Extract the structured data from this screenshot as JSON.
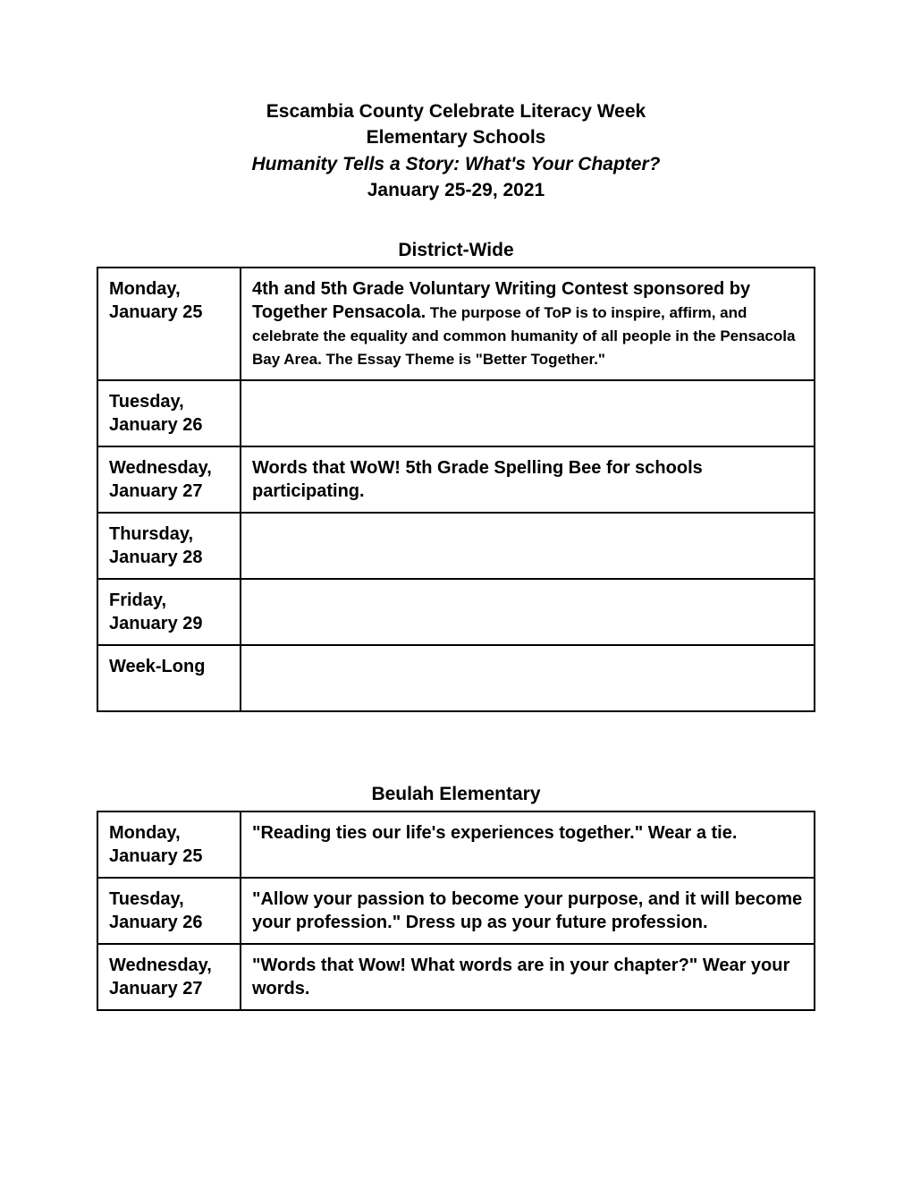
{
  "header": {
    "line1": "Escambia County Celebrate Literacy Week",
    "line2": "Elementary Schools",
    "line3": "Humanity Tells a Story:  What's Your Chapter?",
    "line4": "January 25-29, 2021"
  },
  "sections": [
    {
      "title": "District-Wide",
      "rows": [
        {
          "day": "Monday, January 25",
          "content_bold": "4th and 5th Grade Voluntary Writing Contest sponsored by Together Pensacola.",
          "content_small": "  The purpose of ToP is to inspire, affirm, and celebrate the equality and common humanity of all people in the Pensacola Bay Area. The Essay Theme is \"Better Together.\""
        },
        {
          "day": "Tuesday, January 26",
          "content_bold": "",
          "content_small": ""
        },
        {
          "day": "Wednesday, January 27",
          "content_bold": "Words that WoW! 5th Grade Spelling Bee for schools participating.",
          "content_small": ""
        },
        {
          "day": "Thursday, January 28",
          "content_bold": "",
          "content_small": ""
        },
        {
          "day": "Friday, January 29",
          "content_bold": "",
          "content_small": ""
        },
        {
          "day": "Week-Long",
          "content_bold": "",
          "content_small": ""
        }
      ]
    },
    {
      "title": "Beulah Elementary",
      "rows": [
        {
          "day": "Monday, January 25",
          "content_bold": "\"Reading ties our life's experiences together.\"  Wear a tie.",
          "content_small": ""
        },
        {
          "day": "Tuesday, January 26",
          "content_bold": "\"Allow your passion to become your purpose, and it will become your profession.\" Dress up as your future profession.",
          "content_small": ""
        },
        {
          "day": "Wednesday, January 27",
          "content_bold": "\"Words that Wow! What words are in your chapter?\" Wear your words.",
          "content_small": ""
        }
      ]
    }
  ],
  "style": {
    "background_color": "#ffffff",
    "text_color": "#000000",
    "border_color": "#000000",
    "header_fontsize": 21,
    "section_title_fontsize": 21,
    "day_fontsize": 20,
    "content_fontsize": 20,
    "small_fontsize": 17,
    "day_column_width": 160
  }
}
